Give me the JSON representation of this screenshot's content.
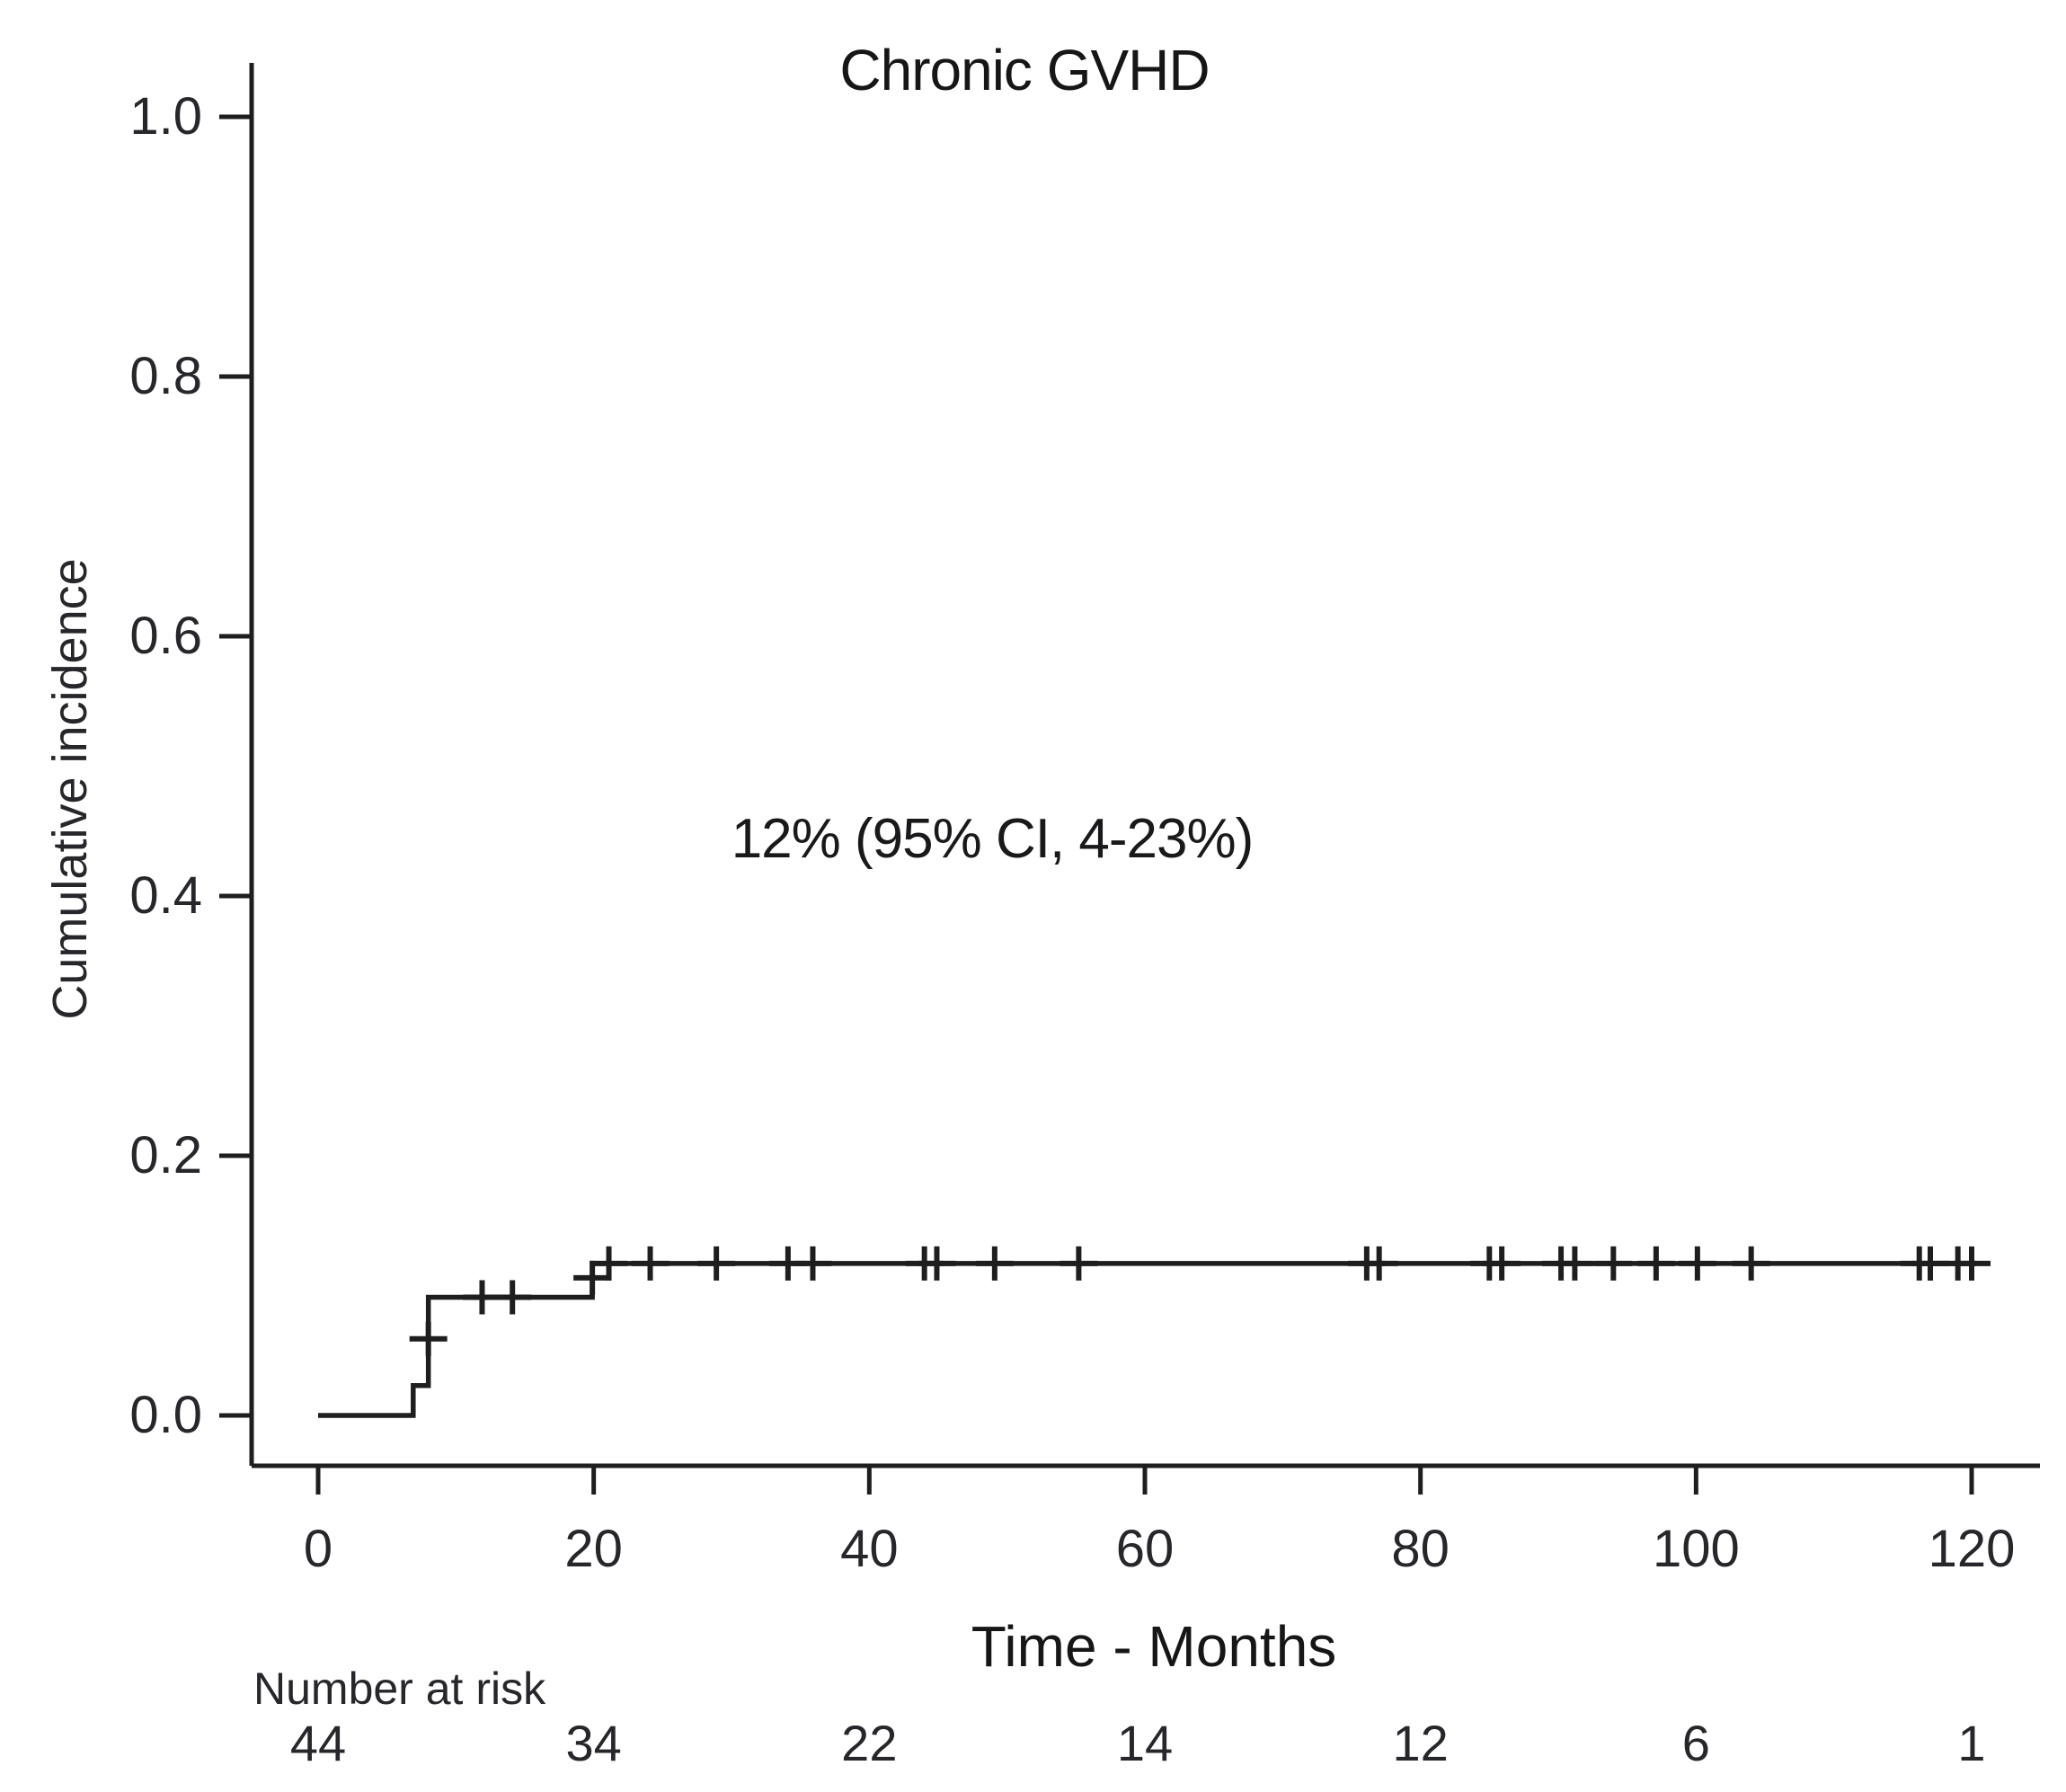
{
  "chart_data": {
    "type": "line",
    "subtype": "kaplan-meier-cumulative-incidence-step",
    "title": "Chronic GVHD",
    "xlabel": "Time - Months",
    "ylabel": "Cumulative incidence",
    "annotation": "12% (95% CI, 4-23%)",
    "xlim": [
      0,
      120
    ],
    "ylim": [
      0.0,
      1.0
    ],
    "x_ticks": [
      0,
      20,
      40,
      60,
      80,
      100,
      120
    ],
    "y_ticks": [
      1.0,
      0.8,
      0.6,
      0.4,
      0.2,
      0.0
    ],
    "grid": false,
    "legend": "none",
    "series": [
      {
        "name": "Chronic GVHD cumulative incidence",
        "steps": [
          {
            "t": 0,
            "v": 0
          },
          {
            "t": 6.9,
            "v": 0.023
          },
          {
            "t": 8.0,
            "v": 0.091
          },
          {
            "t": 19.9,
            "v": 0.117
          }
        ],
        "end_t": 120.2,
        "censor_marks": [
          {
            "t": 8.0,
            "v": 0.059
          },
          {
            "t": 11.9,
            "v": 0.091
          },
          {
            "t": 14.1,
            "v": 0.091
          },
          {
            "t": 19.9,
            "v": 0.106
          },
          {
            "t": 21.1,
            "v": 0.117
          },
          {
            "t": 24.1,
            "v": 0.117
          },
          {
            "t": 28.9,
            "v": 0.117
          },
          {
            "t": 34.1,
            "v": 0.117
          },
          {
            "t": 35.9,
            "v": 0.117
          },
          {
            "t": 44.0,
            "v": 0.117
          },
          {
            "t": 44.9,
            "v": 0.117
          },
          {
            "t": 49.1,
            "v": 0.117
          },
          {
            "t": 55.2,
            "v": 0.117
          },
          {
            "t": 76.1,
            "v": 0.117
          },
          {
            "t": 77.0,
            "v": 0.117
          },
          {
            "t": 85.0,
            "v": 0.117
          },
          {
            "t": 85.9,
            "v": 0.117
          },
          {
            "t": 90.2,
            "v": 0.117
          },
          {
            "t": 91.2,
            "v": 0.117
          },
          {
            "t": 94.0,
            "v": 0.117
          },
          {
            "t": 97.1,
            "v": 0.117
          },
          {
            "t": 100.1,
            "v": 0.117
          },
          {
            "t": 104.0,
            "v": 0.117
          },
          {
            "t": 116.2,
            "v": 0.117
          },
          {
            "t": 117.0,
            "v": 0.117
          },
          {
            "t": 119.0,
            "v": 0.117
          },
          {
            "t": 120.0,
            "v": 0.117
          }
        ]
      }
    ],
    "number_at_risk": {
      "label": "Number at risk",
      "times": [
        0,
        20,
        40,
        60,
        80,
        100,
        120
      ],
      "counts": [
        44,
        34,
        22,
        14,
        12,
        6,
        1
      ]
    },
    "colors": {
      "line": "#1e1e1e",
      "axis": "#1e1e1e",
      "text": "#26262b",
      "background": "#ffffff"
    }
  }
}
